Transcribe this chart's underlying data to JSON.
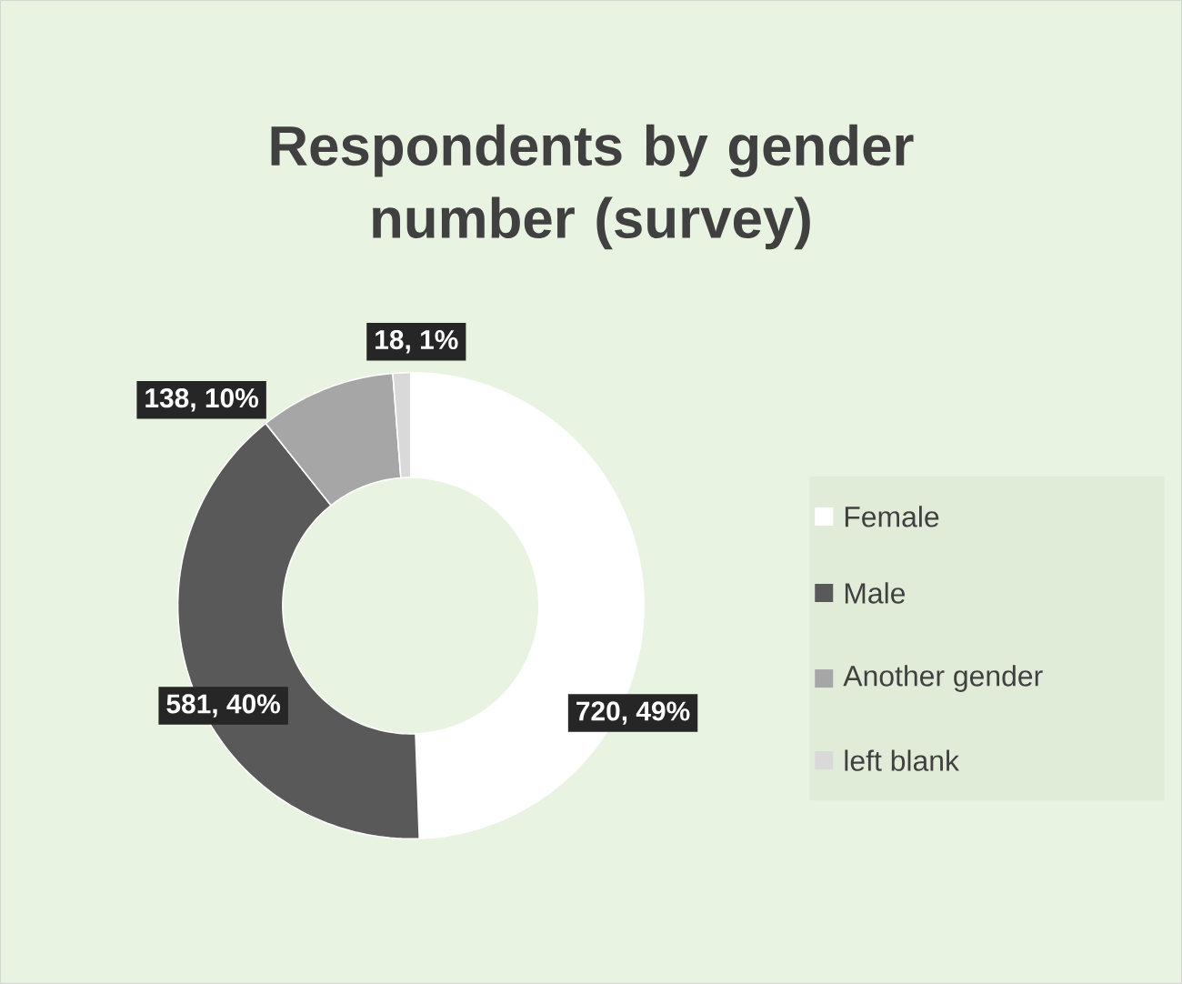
{
  "chart_data": {
    "type": "donut",
    "title": "Respondents by gender number (survey)",
    "categories": [
      "Female",
      "Male",
      "Another gender",
      "left blank"
    ],
    "values": [
      720,
      581,
      138,
      18
    ],
    "colors": [
      "#ffffff",
      "#595959",
      "#a6a6a6",
      "#d9d9d9"
    ],
    "value_labels": [
      "720, 49%",
      "581, 40%",
      "138, 10%",
      "18, 1%"
    ],
    "legend": "right"
  }
}
